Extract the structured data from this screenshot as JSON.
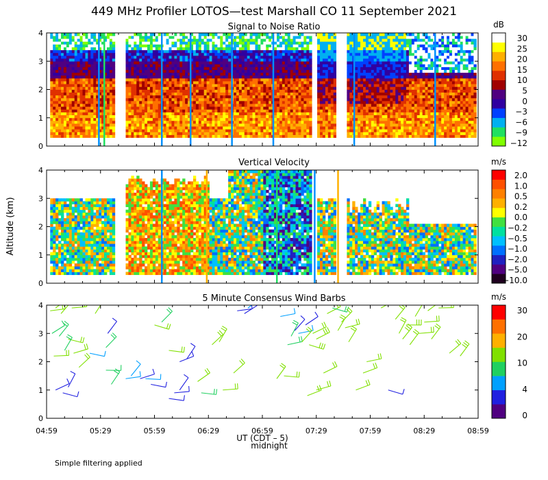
{
  "title": "449 MHz Profiler LOTOS—test Marshall CO 11 September 2021",
  "y_axis_label": "Altitude (km)",
  "x_axis_label": "UT  (CDT – 5)",
  "midnight_label": "midnight",
  "footnote": "Simple filtering applied",
  "colors": {
    "snr_scale": [
      "#80ff00",
      "#20e060",
      "#00b0f0",
      "#0040ff",
      "#3000a0",
      "#500080",
      "#a00000",
      "#e03000",
      "#ff7000",
      "#ffb000",
      "#ffff00",
      "#ffffff"
    ],
    "vv_scale": [
      "#200020",
      "#500080",
      "#2020c0",
      "#0070ff",
      "#00c0ff",
      "#00e0a0",
      "#40e040",
      "#ffff00",
      "#ffb000",
      "#ff8000",
      "#ff5000",
      "#ff0000"
    ],
    "wind_scale": [
      "#500080",
      "#2020e0",
      "#00a0ff",
      "#20d060",
      "#80e000",
      "#ffb000",
      "#ff7000",
      "#ff0000"
    ],
    "vertical_line_blue": "#0090ff",
    "vertical_line_green": "#20e060",
    "vertical_line_orange": "#ffb000"
  },
  "chart_data": [
    {
      "type": "heatmap",
      "title": "Signal to Noise Ratio",
      "units": "dB",
      "colorbar_labels": [
        "30",
        "25",
        "20",
        "15",
        "10",
        "5",
        "0",
        "−3",
        "−6",
        "−9",
        "−12"
      ],
      "xlabel": "UT  (CDT – 5)",
      "ylabel": "Altitude (km)",
      "xlim_minutes": [
        0,
        240
      ],
      "ylim": [
        0,
        4
      ],
      "y_ticks": [
        "0",
        "1",
        "2",
        "3",
        "4"
      ],
      "data_gaps_minutes": [
        [
          37,
          43
        ],
        [
          147,
          150
        ],
        [
          161,
          167
        ]
      ],
      "data_altitude_range_km": [
        0.3,
        4.0
      ],
      "vertical_lines": [
        {
          "minute": 29,
          "color": "blue"
        },
        {
          "minute": 32,
          "color": "green"
        },
        {
          "minute": 64,
          "color": "blue"
        },
        {
          "minute": 80,
          "color": "blue"
        },
        {
          "minute": 103,
          "color": "blue"
        },
        {
          "minute": 126,
          "color": "blue"
        },
        {
          "minute": 171,
          "color": "blue"
        },
        {
          "minute": 216,
          "color": "blue"
        }
      ]
    },
    {
      "type": "heatmap",
      "title": "Vertical Velocity",
      "units": "m/s",
      "colorbar_labels": [
        "2.0",
        "1.0",
        "0.5",
        "0.2",
        "0.0",
        "−0.2",
        "−0.5",
        "−1.0",
        "−2.0",
        "−5.0",
        "−10.0"
      ],
      "xlabel": "UT  (CDT – 5)",
      "ylabel": "Altitude (km)",
      "xlim_minutes": [
        0,
        240
      ],
      "ylim": [
        0,
        4
      ],
      "y_ticks": [
        "0",
        "1",
        "2",
        "3",
        "4"
      ],
      "vertical_lines": [
        {
          "minute": 64,
          "color": "blue"
        },
        {
          "minute": 89,
          "color": "orange"
        },
        {
          "minute": 128,
          "color": "green"
        },
        {
          "minute": 149,
          "color": "blue"
        },
        {
          "minute": 162,
          "color": "orange"
        }
      ]
    },
    {
      "type": "scatter",
      "title": "5 Minute Consensus Wind Barbs",
      "units": "m/s",
      "colorbar_labels": [
        "30",
        "20",
        "10",
        "4",
        "0"
      ],
      "xlabel": "UT  (CDT – 5)",
      "ylabel": "Altitude (km)",
      "xlim_minutes": [
        0,
        240
      ],
      "ylim": [
        0,
        4
      ],
      "y_ticks": [
        "0",
        "1",
        "2",
        "3",
        "4"
      ],
      "x_ticks": [
        "04:59",
        "05:29",
        "05:59",
        "06:29",
        "06:59",
        "07:29",
        "07:59",
        "08:29",
        "08:59"
      ],
      "barbs": [
        {
          "t": 2,
          "alt": 3.8,
          "speed": 11
        },
        {
          "t": 5,
          "alt": 3.9,
          "speed": 12
        },
        {
          "t": 8,
          "alt": 3.7,
          "speed": 10
        },
        {
          "t": 14,
          "alt": 3.9,
          "speed": 11
        },
        {
          "t": 3,
          "alt": 3.0,
          "speed": 7
        },
        {
          "t": 7,
          "alt": 2.9,
          "speed": 9
        },
        {
          "t": 12,
          "alt": 2.8,
          "speed": 12
        },
        {
          "t": 4,
          "alt": 2.2,
          "speed": 11
        },
        {
          "t": 10,
          "alt": 2.4,
          "speed": 9
        },
        {
          "t": 15,
          "alt": 2.3,
          "speed": 12
        },
        {
          "t": 5,
          "alt": 1.0,
          "speed": 2
        },
        {
          "t": 9,
          "alt": 0.9,
          "speed": 3
        },
        {
          "t": 12,
          "alt": 1.1,
          "speed": 2
        },
        {
          "t": 18,
          "alt": 1.8,
          "speed": 12
        },
        {
          "t": 24,
          "alt": 2.3,
          "speed": 6
        },
        {
          "t": 27,
          "alt": 3.7,
          "speed": 12
        },
        {
          "t": 33,
          "alt": 1.7,
          "speed": 7
        },
        {
          "t": 33,
          "alt": 2.5,
          "speed": 9
        },
        {
          "t": 34,
          "alt": 3.0,
          "speed": 2
        },
        {
          "t": 36,
          "alt": 1.2,
          "speed": 8
        },
        {
          "t": 44,
          "alt": 1.4,
          "speed": 6
        },
        {
          "t": 47,
          "alt": 1.5,
          "speed": 4
        },
        {
          "t": 52,
          "alt": 1.4,
          "speed": 3
        },
        {
          "t": 55,
          "alt": 1.4,
          "speed": 4
        },
        {
          "t": 58,
          "alt": 1.2,
          "speed": 3
        },
        {
          "t": 60,
          "alt": 3.3,
          "speed": 12
        },
        {
          "t": 64,
          "alt": 3.4,
          "speed": 9
        },
        {
          "t": 68,
          "alt": 2.4,
          "speed": 10
        },
        {
          "t": 68,
          "alt": 0.7,
          "speed": 3
        },
        {
          "t": 71,
          "alt": 0.9,
          "speed": 2
        },
        {
          "t": 74,
          "alt": 1.0,
          "speed": 2
        },
        {
          "t": 74,
          "alt": 2.0,
          "speed": 2
        },
        {
          "t": 78,
          "alt": 2.1,
          "speed": 3
        },
        {
          "t": 84,
          "alt": 1.3,
          "speed": 11
        },
        {
          "t": 86,
          "alt": 0.9,
          "speed": 9
        },
        {
          "t": 92,
          "alt": 2.6,
          "speed": 11
        },
        {
          "t": 96,
          "alt": 2.7,
          "speed": 12
        },
        {
          "t": 98,
          "alt": 1.0,
          "speed": 11
        },
        {
          "t": 104,
          "alt": 1.6,
          "speed": 12
        },
        {
          "t": 106,
          "alt": 3.8,
          "speed": 3
        },
        {
          "t": 110,
          "alt": 3.7,
          "speed": 3
        },
        {
          "t": 112,
          "alt": 3.9,
          "speed": 5
        },
        {
          "t": 128,
          "alt": 1.4,
          "speed": 11
        },
        {
          "t": 132,
          "alt": 1.5,
          "speed": 12
        },
        {
          "t": 130,
          "alt": 3.6,
          "speed": 5
        },
        {
          "t": 134,
          "alt": 2.6,
          "speed": 9
        },
        {
          "t": 136,
          "alt": 2.9,
          "speed": 8
        },
        {
          "t": 138,
          "alt": 3.1,
          "speed": 2
        },
        {
          "t": 140,
          "alt": 3.0,
          "speed": 6
        },
        {
          "t": 142,
          "alt": 2.7,
          "speed": 11
        },
        {
          "t": 144,
          "alt": 3.3,
          "speed": 3
        },
        {
          "t": 146,
          "alt": 2.6,
          "speed": 14
        },
        {
          "t": 148,
          "alt": 3.0,
          "speed": 12
        },
        {
          "t": 150,
          "alt": 2.8,
          "speed": 13
        },
        {
          "t": 145,
          "alt": 0.8,
          "speed": 11
        },
        {
          "t": 150,
          "alt": 1.0,
          "speed": 10
        },
        {
          "t": 154,
          "alt": 1.6,
          "speed": 11
        },
        {
          "t": 156,
          "alt": 3.7,
          "speed": 11
        },
        {
          "t": 159,
          "alt": 3.9,
          "speed": 9
        },
        {
          "t": 162,
          "alt": 3.1,
          "speed": 11
        },
        {
          "t": 164,
          "alt": 3.4,
          "speed": 12
        },
        {
          "t": 166,
          "alt": 3.2,
          "speed": 11
        },
        {
          "t": 168,
          "alt": 2.7,
          "speed": 12
        },
        {
          "t": 172,
          "alt": 1.0,
          "speed": 10
        },
        {
          "t": 176,
          "alt": 1.6,
          "speed": 11
        },
        {
          "t": 178,
          "alt": 2.0,
          "speed": 12
        },
        {
          "t": 186,
          "alt": 3.9,
          "speed": 11
        },
        {
          "t": 194,
          "alt": 3.5,
          "speed": 11
        },
        {
          "t": 196,
          "alt": 3.0,
          "speed": 12
        },
        {
          "t": 198,
          "alt": 2.8,
          "speed": 14
        },
        {
          "t": 200,
          "alt": 3.3,
          "speed": 13
        },
        {
          "t": 202,
          "alt": 2.6,
          "speed": 12
        },
        {
          "t": 205,
          "alt": 3.6,
          "speed": 11
        },
        {
          "t": 207,
          "alt": 3.0,
          "speed": 12
        },
        {
          "t": 210,
          "alt": 3.4,
          "speed": 11
        },
        {
          "t": 212,
          "alt": 3.8,
          "speed": 12
        },
        {
          "t": 214,
          "alt": 2.8,
          "speed": 12
        },
        {
          "t": 218,
          "alt": 3.9,
          "speed": 11
        },
        {
          "t": 190,
          "alt": 1.0,
          "speed": 3
        },
        {
          "t": 224,
          "alt": 2.3,
          "speed": 12
        },
        {
          "t": 230,
          "alt": 2.2,
          "speed": 13
        }
      ]
    }
  ]
}
